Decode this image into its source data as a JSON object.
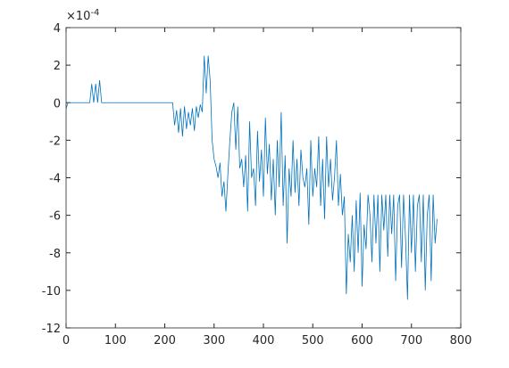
{
  "chart_data": {
    "type": "line",
    "y_multiplier": "×10",
    "y_exponent": "-4",
    "x": [
      0,
      4,
      8,
      12,
      16,
      20,
      24,
      28,
      32,
      36,
      40,
      44,
      48,
      52,
      56,
      60,
      64,
      68,
      72,
      76,
      80,
      84,
      88,
      92,
      96,
      100,
      104,
      108,
      112,
      116,
      120,
      124,
      128,
      132,
      136,
      140,
      144,
      148,
      152,
      156,
      160,
      164,
      168,
      172,
      176,
      180,
      184,
      188,
      192,
      196,
      200,
      204,
      208,
      212,
      216,
      220,
      224,
      228,
      232,
      236,
      240,
      244,
      248,
      252,
      256,
      260,
      264,
      268,
      272,
      276,
      280,
      284,
      288,
      292,
      296,
      300,
      304,
      308,
      312,
      316,
      320,
      324,
      328,
      332,
      336,
      340,
      344,
      348,
      352,
      356,
      360,
      364,
      368,
      372,
      376,
      380,
      384,
      388,
      392,
      396,
      400,
      404,
      408,
      412,
      416,
      420,
      424,
      428,
      432,
      436,
      440,
      444,
      448,
      452,
      456,
      460,
      464,
      468,
      472,
      476,
      480,
      484,
      488,
      492,
      496,
      500,
      504,
      508,
      512,
      516,
      520,
      524,
      528,
      532,
      536,
      540,
      544,
      548,
      552,
      556,
      560,
      564,
      568,
      572,
      576,
      580,
      584,
      588,
      592,
      596,
      600,
      604,
      608,
      612,
      616,
      620,
      624,
      628,
      632,
      636,
      640,
      644,
      648,
      652,
      656,
      660,
      664,
      668,
      672,
      676,
      680,
      684,
      688,
      692,
      696,
      700,
      704,
      708,
      712,
      716,
      720,
      724,
      728,
      732,
      736,
      740,
      744,
      748,
      752
    ],
    "series": [
      {
        "color": "#0072bd",
        "values": [
          -0.3,
          0,
          0,
          0,
          0,
          0,
          0,
          0,
          0,
          0,
          0,
          0,
          0,
          1.0,
          0,
          1.0,
          0,
          1.2,
          0,
          0,
          0,
          0,
          0,
          0,
          0,
          0,
          0,
          0,
          0,
          0,
          0,
          0,
          0,
          0,
          0,
          0,
          0,
          0,
          0,
          0,
          0,
          0,
          0,
          0,
          0,
          0,
          0,
          0,
          0,
          0,
          0,
          0,
          0,
          0,
          0,
          -1.2,
          -0.4,
          -1.6,
          -0.3,
          -1.8,
          -0.2,
          -1.4,
          -0.5,
          -1.2,
          -0.3,
          -1.5,
          -0.2,
          -0.8,
          -0.1,
          -0.5,
          2.5,
          0.5,
          2.5,
          1.2,
          -2.0,
          -3.0,
          -3.4,
          -4.0,
          -3.2,
          -5.0,
          -4.2,
          -5.8,
          -3.8,
          -2.0,
          -0.5,
          0,
          -2.5,
          -0.2,
          -3.5,
          -3.0,
          -4.5,
          -2.8,
          -5.8,
          -1.0,
          -4.0,
          -3.5,
          -5.5,
          -1.5,
          -4.2,
          -2.5,
          -5.0,
          -0.8,
          -3.8,
          -2.2,
          -5.2,
          -3.0,
          -6.0,
          -2.0,
          -4.5,
          -0.5,
          -5.5,
          -2.8,
          -7.5,
          -3.5,
          -5.0,
          -2.0,
          -4.8,
          -3.0,
          -5.5,
          -2.5,
          -4.0,
          -4.5,
          -3.5,
          -6.5,
          -2.0,
          -5.0,
          -3.5,
          -4.5,
          -1.8,
          -5.5,
          -3.0,
          -6.2,
          -1.8,
          -4.5,
          -3.0,
          -5.2,
          -4.0,
          -2.0,
          -5.5,
          -3.8,
          -6.0,
          -5.0,
          -10.2,
          -7.0,
          -8.5,
          -6.0,
          -9.0,
          -5.2,
          -8.0,
          -4.8,
          -9.8,
          -6.5,
          -7.8,
          -4.9,
          -6.0,
          -8.5,
          -4.9,
          -7.5,
          -4.9,
          -9.0,
          -4.9,
          -6.8,
          -4.9,
          -8.2,
          -4.9,
          -7.0,
          -4.9,
          -9.5,
          -5.5,
          -4.9,
          -8.8,
          -4.9,
          -7.2,
          -10.5,
          -4.9,
          -8.0,
          -4.9,
          -9.0,
          -5.5,
          -4.9,
          -8.5,
          -4.9,
          -10.0,
          -6.0,
          -4.9,
          -9.5,
          -4.9,
          -7.5,
          -6.2
        ]
      }
    ],
    "xlim": [
      0,
      800
    ],
    "xticks": [
      0,
      100,
      200,
      300,
      400,
      500,
      600,
      700,
      800
    ],
    "ylim": [
      -12,
      4
    ],
    "yticks": [
      -12,
      -10,
      -8,
      -6,
      -4,
      -2,
      0,
      2,
      4
    ],
    "grid": false
  }
}
